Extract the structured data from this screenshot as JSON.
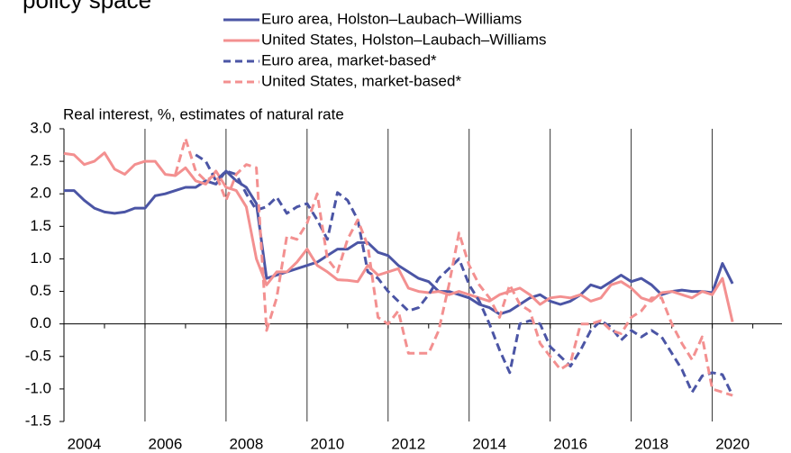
{
  "chart_data": {
    "type": "line",
    "title": "policy space",
    "ylabel": "Real interest, %, estimates of natural rate",
    "x": [
      2004,
      2004.25,
      2004.5,
      2004.75,
      2005,
      2005.25,
      2005.5,
      2005.75,
      2006,
      2006.25,
      2006.5,
      2006.75,
      2007,
      2007.25,
      2007.5,
      2007.75,
      2008,
      2008.25,
      2008.5,
      2008.75,
      2009,
      2009.25,
      2009.5,
      2009.75,
      2010,
      2010.25,
      2010.5,
      2010.75,
      2011,
      2011.25,
      2011.5,
      2011.75,
      2012,
      2012.25,
      2012.5,
      2012.75,
      2013,
      2013.25,
      2013.5,
      2013.75,
      2014,
      2014.25,
      2014.5,
      2014.75,
      2015,
      2015.25,
      2015.5,
      2015.75,
      2016,
      2016.25,
      2016.5,
      2016.75,
      2017,
      2017.25,
      2017.5,
      2017.75,
      2018,
      2018.25,
      2018.5,
      2018.75,
      2019,
      2019.25,
      2019.5,
      2019.75,
      2020,
      2020.25,
      2020.5
    ],
    "series": [
      {
        "name": "Euro area, Holston–Laubach–Williams",
        "color": "#4b55a5",
        "dash": false,
        "values": [
          2.05,
          2.05,
          1.9,
          1.78,
          1.72,
          1.7,
          1.72,
          1.78,
          1.78,
          1.97,
          2.0,
          2.05,
          2.1,
          2.1,
          2.2,
          2.15,
          2.35,
          2.2,
          2.1,
          1.85,
          0.7,
          0.75,
          0.8,
          0.85,
          0.9,
          0.95,
          1.05,
          1.15,
          1.15,
          1.25,
          1.25,
          1.1,
          1.05,
          0.9,
          0.8,
          0.7,
          0.65,
          0.5,
          0.5,
          0.45,
          0.4,
          0.3,
          0.25,
          0.15,
          0.2,
          0.3,
          0.4,
          0.45,
          0.35,
          0.3,
          0.35,
          0.45,
          0.6,
          0.55,
          0.65,
          0.75,
          0.65,
          0.7,
          0.6,
          0.45,
          0.5,
          0.52,
          0.5,
          0.5,
          0.48,
          0.93,
          0.62
        ]
      },
      {
        "name": "United States, Holston–Laubach–Williams",
        "color": "#f39090",
        "dash": false,
        "values": [
          2.62,
          2.6,
          2.45,
          2.5,
          2.63,
          2.38,
          2.3,
          2.45,
          2.5,
          2.5,
          2.3,
          2.28,
          2.4,
          2.2,
          2.15,
          2.35,
          2.1,
          2.05,
          1.8,
          1.0,
          0.6,
          0.8,
          0.8,
          0.95,
          1.15,
          0.9,
          0.8,
          0.68,
          0.67,
          0.65,
          0.9,
          0.75,
          0.8,
          0.85,
          0.55,
          0.5,
          0.48,
          0.5,
          0.45,
          0.5,
          0.45,
          0.4,
          0.35,
          0.45,
          0.5,
          0.55,
          0.45,
          0.3,
          0.4,
          0.42,
          0.4,
          0.45,
          0.35,
          0.4,
          0.6,
          0.65,
          0.55,
          0.4,
          0.35,
          0.48,
          0.5,
          0.45,
          0.4,
          0.5,
          0.45,
          0.7,
          0.03
        ]
      },
      {
        "name": "Euro area, market-based*",
        "color": "#4b55a5",
        "dash": true,
        "values": [
          null,
          null,
          null,
          null,
          null,
          null,
          null,
          null,
          null,
          null,
          null,
          null,
          null,
          2.6,
          2.5,
          2.2,
          2.35,
          2.3,
          2.0,
          1.75,
          1.8,
          1.95,
          1.7,
          1.8,
          1.85,
          1.6,
          1.3,
          2.02,
          1.9,
          1.6,
          0.8,
          0.7,
          0.5,
          0.35,
          0.2,
          0.25,
          0.45,
          0.7,
          0.85,
          1.0,
          0.6,
          0.35,
          0.0,
          -0.4,
          -0.75,
          0.0,
          0.05,
          0.0,
          -0.35,
          -0.5,
          -0.65,
          -0.4,
          -0.1,
          0.05,
          -0.05,
          -0.25,
          -0.1,
          -0.2,
          -0.1,
          -0.2,
          -0.45,
          -0.7,
          -1.05,
          -0.8,
          -0.75,
          -0.78,
          -1.1
        ]
      },
      {
        "name": "United States, market-based*",
        "color": "#f39090",
        "dash": true,
        "values": [
          null,
          null,
          null,
          null,
          null,
          null,
          null,
          null,
          null,
          null,
          null,
          2.3,
          2.85,
          2.35,
          2.2,
          2.3,
          1.9,
          2.3,
          2.45,
          2.4,
          -0.1,
          0.4,
          1.35,
          1.3,
          1.55,
          2.0,
          1.0,
          0.8,
          1.3,
          1.6,
          1.2,
          0.1,
          0.0,
          0.2,
          -0.45,
          -0.45,
          -0.45,
          -0.1,
          0.6,
          1.4,
          0.9,
          0.6,
          0.4,
          0.1,
          0.6,
          0.3,
          0.2,
          -0.3,
          -0.5,
          -0.7,
          -0.6,
          0.0,
          0.0,
          0.05,
          -0.1,
          -0.15,
          0.1,
          0.2,
          0.4,
          0.4,
          0.0,
          -0.3,
          -0.55,
          -0.2,
          -1.0,
          -1.05,
          -1.1
        ]
      }
    ],
    "xlim": [
      2004,
      2021.72
    ],
    "xticks": [
      2004,
      2006,
      2008,
      2010,
      2012,
      2014,
      2016,
      2018,
      2020
    ],
    "ylim": [
      -1.5,
      3
    ],
    "yticks": [
      {
        "value": -1.5,
        "label": "-1.5"
      },
      {
        "value": -1,
        "label": "-1.0"
      },
      -0.5,
      {
        "value": 0,
        "label": "0.0"
      },
      0.5,
      {
        "value": 1,
        "label": "1.0"
      },
      1.5,
      {
        "value": 2,
        "label": "2.0"
      },
      2.5,
      {
        "value": 3,
        "label": "3.0"
      }
    ],
    "grid": "x"
  }
}
